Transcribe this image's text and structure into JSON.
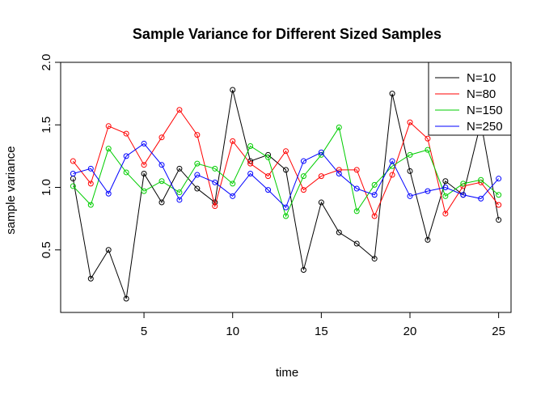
{
  "chart_data": {
    "type": "line",
    "title": "Sample Variance for Different Sized Samples",
    "xlabel": "time",
    "ylabel": "sample variance",
    "xlim": [
      0.3,
      25.7
    ],
    "ylim": [
      0.0,
      2.0
    ],
    "xticks": [
      "5",
      "10",
      "15",
      "20",
      "25"
    ],
    "xtick_values": [
      5,
      10,
      15,
      20,
      25
    ],
    "yticks": [
      "0.5",
      "1.0",
      "1.5",
      "2.0"
    ],
    "ytick_values": [
      0.5,
      1.0,
      1.5,
      2.0
    ],
    "x": [
      1,
      2,
      3,
      4,
      5,
      6,
      7,
      8,
      9,
      10,
      11,
      12,
      13,
      14,
      15,
      16,
      17,
      18,
      19,
      20,
      21,
      22,
      23,
      24,
      25
    ],
    "legend_position": "top-right",
    "grid": false,
    "series": [
      {
        "name": "N=10",
        "color": "#000000",
        "values": [
          1.07,
          0.27,
          0.5,
          0.11,
          1.11,
          0.88,
          1.15,
          0.99,
          0.88,
          1.78,
          1.21,
          1.26,
          1.14,
          0.34,
          0.88,
          0.64,
          0.55,
          0.43,
          1.75,
          1.13,
          0.58,
          1.05,
          0.94,
          1.52,
          0.74
        ]
      },
      {
        "name": "N=80",
        "color": "#ff0000",
        "values": [
          1.21,
          1.03,
          1.49,
          1.43,
          1.18,
          1.4,
          1.62,
          1.42,
          0.85,
          1.37,
          1.19,
          1.09,
          1.29,
          0.98,
          1.09,
          1.14,
          1.14,
          0.77,
          1.1,
          1.52,
          1.39,
          0.79,
          1.01,
          1.04,
          0.86
        ]
      },
      {
        "name": "N=150",
        "color": "#00cd00",
        "values": [
          1.01,
          0.86,
          1.31,
          1.12,
          0.97,
          1.05,
          0.96,
          1.19,
          1.15,
          1.03,
          1.33,
          1.24,
          0.77,
          1.09,
          1.26,
          1.48,
          0.81,
          1.02,
          1.17,
          1.26,
          1.3,
          0.93,
          1.03,
          1.06,
          0.94
        ]
      },
      {
        "name": "N=250",
        "color": "#0000ff",
        "values": [
          1.11,
          1.15,
          0.95,
          1.25,
          1.35,
          1.18,
          0.9,
          1.1,
          1.04,
          0.93,
          1.11,
          0.98,
          0.84,
          1.21,
          1.28,
          1.11,
          0.99,
          0.94,
          1.21,
          0.93,
          0.97,
          1.0,
          0.94,
          0.91,
          1.07
        ]
      }
    ]
  }
}
